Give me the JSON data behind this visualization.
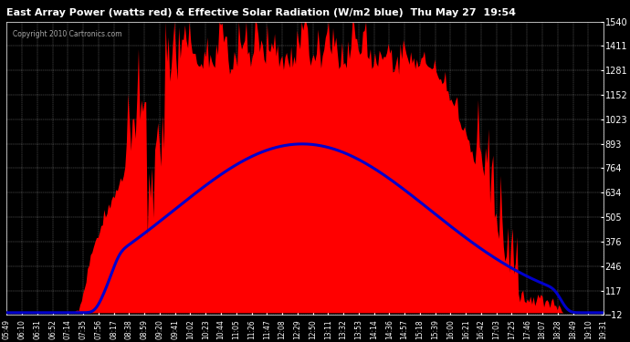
{
  "title": "East Array Power (watts red) & Effective Solar Radiation (W/m2 blue)  Thu May 27  19:54",
  "copyright": "Copyright 2010 Cartronics.com",
  "bg_color": "#000000",
  "plot_bg_color": "#000000",
  "red_color": "#ff0000",
  "blue_color": "#0000cc",
  "grid_color": "#ffffff",
  "text_color": "#ffffff",
  "title_color": "#ffffff",
  "ylim": [
    -12.2,
    1539.9
  ],
  "yticks": [
    -12.2,
    117.1,
    246.5,
    375.8,
    505.2,
    634.5,
    763.9,
    893.2,
    1022.6,
    1151.9,
    1281.2,
    1410.6,
    1539.9
  ],
  "xtick_labels": [
    "05:49",
    "06:10",
    "06:31",
    "06:52",
    "07:14",
    "07:35",
    "07:56",
    "08:17",
    "08:38",
    "08:59",
    "09:20",
    "09:41",
    "10:02",
    "10:23",
    "10:44",
    "11:05",
    "11:26",
    "11:47",
    "12:08",
    "12:29",
    "12:50",
    "13:11",
    "13:32",
    "13:53",
    "14:14",
    "14:36",
    "14:57",
    "15:18",
    "15:39",
    "16:00",
    "16:21",
    "16:42",
    "17:03",
    "17:25",
    "17:46",
    "18:07",
    "18:28",
    "18:49",
    "19:10",
    "19:31"
  ],
  "n_points": 400,
  "figwidth": 6.9,
  "figheight": 3.75,
  "dpi": 100
}
